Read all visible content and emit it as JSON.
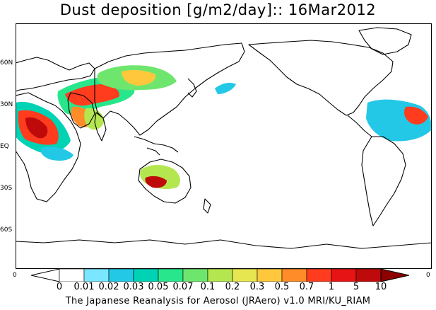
{
  "title": "Dust deposition [g/m2/day]:: 16Mar2012",
  "latitude_labels": [
    "60N",
    "30N",
    "EQ",
    "30S",
    "60S"
  ],
  "edge_labels": {
    "left": "0",
    "right": "0"
  },
  "colorbar": {
    "labels": [
      "0",
      "0.01",
      "0.02",
      "0.03",
      "0.05",
      "0.07",
      "0.1",
      "0.2",
      "0.3",
      "0.5",
      "0.7",
      "1",
      "5",
      "10"
    ],
    "colors": [
      "#ffffff",
      "#ffffff",
      "#7ae6ff",
      "#22c8e6",
      "#00d2b4",
      "#28e68c",
      "#6ee66e",
      "#b4e650",
      "#e6e650",
      "#ffc83c",
      "#ff8c28",
      "#ff3c1e",
      "#e61414",
      "#be0a0a",
      "#8c0000"
    ]
  },
  "footer": "The Japanese Reanalysis for Aerosol (JRAero) v1.0 MRI/KU_RIAM",
  "colors": {
    "coast": "#000000",
    "frame": "#000000",
    "background": "#ffffff"
  }
}
